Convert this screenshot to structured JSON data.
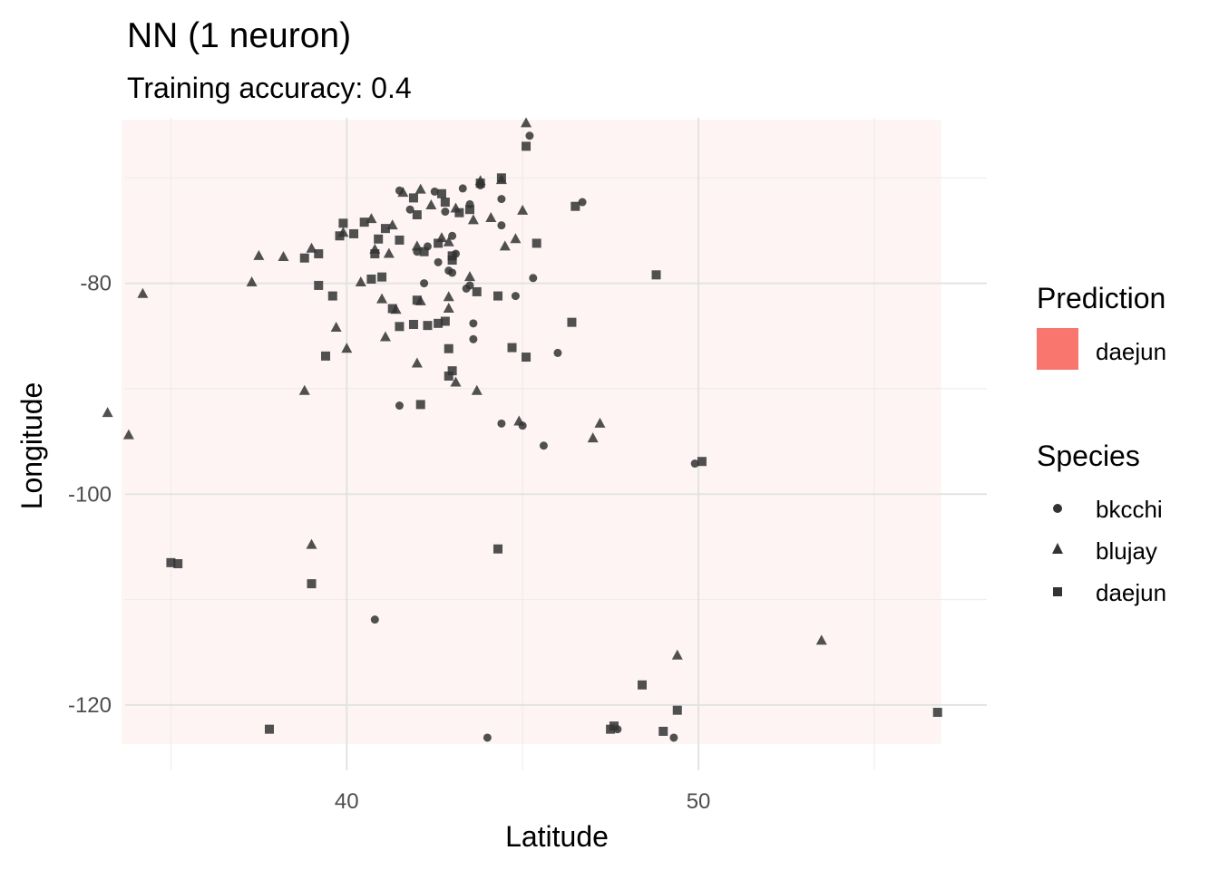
{
  "chart_data": {
    "type": "scatter",
    "title": "NN (1 neuron)",
    "subtitle": "Training accuracy: 0.4",
    "xlabel": "Latitude",
    "ylabel": "Longitude",
    "xlim": [
      33.7,
      58.2
    ],
    "ylim": [
      -126.2,
      -64.3
    ],
    "x_ticks": [
      40,
      50
    ],
    "y_ticks": [
      -80,
      -100,
      -120
    ],
    "grid": true,
    "legend_position": "right",
    "prediction_region": {
      "label": "daejun",
      "color": "#F8766D",
      "x_range": [
        33.6,
        56.9
      ],
      "y_range": [
        -123.7,
        -64.5
      ]
    },
    "legends": {
      "prediction": {
        "title": "Prediction",
        "entries": [
          {
            "label": "daejun",
            "color": "#F8766D"
          }
        ]
      },
      "species": {
        "title": "Species",
        "entries": [
          {
            "label": "bkcchi",
            "shape": "circle"
          },
          {
            "label": "blujay",
            "shape": "triangle"
          },
          {
            "label": "daejun",
            "shape": "square"
          }
        ]
      }
    },
    "series": [
      {
        "name": "bkcchi",
        "shape": "circle",
        "points": [
          [
            41.5,
            -71.2
          ],
          [
            42.5,
            -71.3
          ],
          [
            43.3,
            -71.0
          ],
          [
            43.8,
            -70.7
          ],
          [
            44.4,
            -72.0
          ],
          [
            45.2,
            -66.0
          ],
          [
            41.8,
            -73.0
          ],
          [
            42.8,
            -73.2
          ],
          [
            43.5,
            -72.5
          ],
          [
            44.4,
            -74.5
          ],
          [
            46.7,
            -72.3
          ],
          [
            43.0,
            -75.5
          ],
          [
            42.3,
            -76.5
          ],
          [
            42.6,
            -78.0
          ],
          [
            43.0,
            -79.0
          ],
          [
            42.2,
            -80.0
          ],
          [
            43.4,
            -80.5
          ],
          [
            42.0,
            -77.0
          ],
          [
            43.6,
            -83.8
          ],
          [
            43.6,
            -85.3
          ],
          [
            44.8,
            -81.2
          ],
          [
            45.3,
            -79.5
          ],
          [
            42.9,
            -78.8
          ],
          [
            43.1,
            -77.2
          ],
          [
            41.5,
            -91.6
          ],
          [
            44.4,
            -93.3
          ],
          [
            45.0,
            -93.5
          ],
          [
            45.6,
            -95.4
          ],
          [
            46.0,
            -86.6
          ],
          [
            49.9,
            -97.1
          ],
          [
            40.8,
            -111.9
          ],
          [
            44.0,
            -123.1
          ],
          [
            47.7,
            -122.3
          ],
          [
            49.3,
            -123.1
          ],
          [
            43.5,
            -80.2
          ]
        ]
      },
      {
        "name": "blujay",
        "shape": "triangle",
        "points": [
          [
            45.1,
            -64.8
          ],
          [
            44.4,
            -70.2
          ],
          [
            43.8,
            -70.3
          ],
          [
            42.1,
            -71.1
          ],
          [
            41.6,
            -71.4
          ],
          [
            42.4,
            -72.6
          ],
          [
            43.1,
            -72.9
          ],
          [
            44.1,
            -73.8
          ],
          [
            43.6,
            -74.0
          ],
          [
            40.7,
            -73.9
          ],
          [
            41.3,
            -74.5
          ],
          [
            42.7,
            -75.7
          ],
          [
            39.9,
            -75.2
          ],
          [
            40.8,
            -76.8
          ],
          [
            41.2,
            -77.2
          ],
          [
            42.9,
            -76.1
          ],
          [
            38.2,
            -77.5
          ],
          [
            37.5,
            -77.4
          ],
          [
            37.3,
            -79.9
          ],
          [
            39.0,
            -76.7
          ],
          [
            44.5,
            -76.5
          ],
          [
            45.0,
            -73.1
          ],
          [
            44.8,
            -75.8
          ],
          [
            42.0,
            -76.5
          ],
          [
            43.5,
            -79.4
          ],
          [
            42.9,
            -81.3
          ],
          [
            40.4,
            -79.9
          ],
          [
            41.0,
            -81.5
          ],
          [
            42.9,
            -82.4
          ],
          [
            41.4,
            -82.5
          ],
          [
            39.7,
            -84.2
          ],
          [
            41.1,
            -85.1
          ],
          [
            40.0,
            -86.2
          ],
          [
            42.0,
            -87.6
          ],
          [
            43.1,
            -89.4
          ],
          [
            38.8,
            -90.2
          ],
          [
            44.9,
            -93.1
          ],
          [
            47.2,
            -93.3
          ],
          [
            47.0,
            -94.7
          ],
          [
            34.2,
            -81.0
          ],
          [
            33.8,
            -94.4
          ],
          [
            33.2,
            -92.3
          ],
          [
            39.0,
            -104.8
          ],
          [
            49.4,
            -115.3
          ],
          [
            53.5,
            -113.9
          ],
          [
            43.7,
            -90.2
          ],
          [
            42.1,
            -81.7
          ]
        ]
      },
      {
        "name": "daejun",
        "shape": "square",
        "points": [
          [
            45.1,
            -67.0
          ],
          [
            44.4,
            -70.0
          ],
          [
            43.8,
            -70.5
          ],
          [
            42.7,
            -71.5
          ],
          [
            41.9,
            -71.9
          ],
          [
            42.8,
            -72.3
          ],
          [
            43.2,
            -73.3
          ],
          [
            42.0,
            -73.5
          ],
          [
            40.5,
            -74.2
          ],
          [
            41.1,
            -74.8
          ],
          [
            39.8,
            -75.5
          ],
          [
            40.9,
            -75.8
          ],
          [
            41.5,
            -75.9
          ],
          [
            42.6,
            -76.2
          ],
          [
            39.2,
            -77.2
          ],
          [
            38.8,
            -77.6
          ],
          [
            39.9,
            -74.3
          ],
          [
            40.2,
            -75.3
          ],
          [
            40.8,
            -77.2
          ],
          [
            42.2,
            -77.0
          ],
          [
            43.0,
            -77.4
          ],
          [
            46.5,
            -72.7
          ],
          [
            45.4,
            -76.2
          ],
          [
            43.0,
            -77.8
          ],
          [
            43.7,
            -80.8
          ],
          [
            44.3,
            -81.2
          ],
          [
            40.7,
            -79.6
          ],
          [
            39.2,
            -80.2
          ],
          [
            39.6,
            -81.2
          ],
          [
            41.3,
            -82.4
          ],
          [
            41.5,
            -84.1
          ],
          [
            42.3,
            -84.0
          ],
          [
            41.9,
            -83.9
          ],
          [
            42.8,
            -83.6
          ],
          [
            42.6,
            -83.8
          ],
          [
            46.4,
            -83.7
          ],
          [
            48.8,
            -79.2
          ],
          [
            39.4,
            -86.9
          ],
          [
            42.9,
            -86.2
          ],
          [
            43.0,
            -88.3
          ],
          [
            42.9,
            -88.8
          ],
          [
            44.7,
            -86.1
          ],
          [
            45.1,
            -87.0
          ],
          [
            42.1,
            -91.5
          ],
          [
            50.1,
            -96.9
          ],
          [
            35.2,
            -106.6
          ],
          [
            35.0,
            -106.5
          ],
          [
            39.0,
            -108.5
          ],
          [
            44.3,
            -105.2
          ],
          [
            37.8,
            -122.3
          ],
          [
            47.5,
            -122.3
          ],
          [
            48.4,
            -118.1
          ],
          [
            49.0,
            -122.5
          ],
          [
            49.4,
            -120.5
          ],
          [
            56.8,
            -120.7
          ],
          [
            47.6,
            -122.0
          ],
          [
            41.0,
            -79.4
          ],
          [
            42.0,
            -81.6
          ],
          [
            43.5,
            -73.0
          ]
        ]
      }
    ]
  }
}
